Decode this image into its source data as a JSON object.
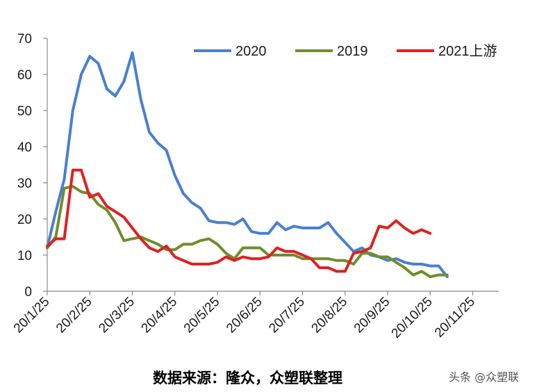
{
  "chart_data": {
    "type": "line",
    "title": "",
    "xlabel": "",
    "ylabel": "",
    "ylim": [
      0,
      70
    ],
    "yticks": [
      0,
      10,
      20,
      30,
      40,
      50,
      60,
      70
    ],
    "x_tick_labels": [
      "20/1/25",
      "20/2/25",
      "20/3/25",
      "20/4/25",
      "20/5/25",
      "20/6/25",
      "20/7/25",
      "20/8/25",
      "20/9/25",
      "20/10/25",
      "20/11/25"
    ],
    "x_tick_index": [
      0,
      5,
      10,
      15,
      20,
      25,
      30,
      35,
      40,
      45,
      50
    ],
    "x_period_count": 53,
    "legend_position": "top-right",
    "grid": false,
    "series": [
      {
        "name": "2020",
        "color": "#4a7fd0",
        "values": [
          12,
          22,
          31,
          50,
          60,
          65,
          63,
          56,
          54,
          58,
          66,
          53,
          44,
          41,
          39,
          32,
          27,
          24.5,
          23,
          19.5,
          19,
          19,
          18.5,
          20,
          16.5,
          16,
          16,
          19,
          17,
          18,
          17.5,
          17.5,
          17.5,
          19,
          16,
          13.5,
          11,
          12,
          10,
          9.5,
          8.5,
          9,
          8,
          7.5,
          7.5,
          7,
          7,
          4
        ]
      },
      {
        "name": "2019",
        "color": "#6f8d2a",
        "values": [
          12,
          15,
          28.5,
          29,
          27.5,
          27,
          24,
          22.5,
          19,
          14,
          14.5,
          15,
          14,
          13,
          11.5,
          11.5,
          13,
          13,
          14,
          14.5,
          13,
          10.5,
          9,
          12,
          12,
          12,
          10,
          10,
          10,
          10,
          9,
          9,
          9,
          9,
          8.5,
          8.5,
          7.5,
          10.5,
          10.5,
          9.5,
          9.5,
          8,
          6.5,
          4.5,
          5.5,
          4,
          4.5,
          4.5
        ]
      },
      {
        "name": "2021上游",
        "color": "#e02020",
        "values": [
          12.5,
          14.5,
          14.5,
          33.5,
          33.5,
          26,
          27,
          23.5,
          22,
          20.5,
          17.5,
          14.5,
          12,
          11,
          12.5,
          9.5,
          8.5,
          7.5,
          7.5,
          7.5,
          8,
          9.5,
          8.5,
          9.5,
          9,
          9,
          9.5,
          12,
          11,
          11,
          10,
          9,
          6.5,
          6.5,
          5.5,
          5.5,
          10.5,
          11,
          12,
          18,
          17.5,
          19.5,
          17.5,
          16,
          17,
          16
        ]
      }
    ]
  },
  "source_note": "数据来源：隆众，众塑联整理",
  "watermark": "头条 @众塑联"
}
